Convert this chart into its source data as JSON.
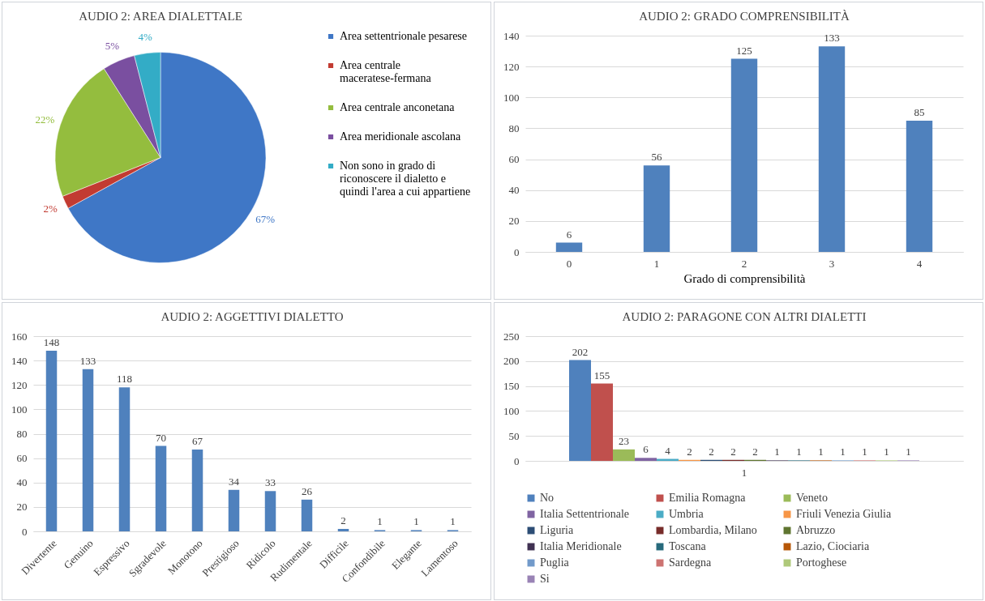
{
  "chart_data": [
    {
      "type": "pie",
      "title": "AUDIO 2: AREA DIALETTALE",
      "categories": [
        "Area settentrionale pesarese",
        "Area centrale maceratese-fermana",
        "Area centrale anconetana",
        "Area meridionale ascolana",
        "Non sono in grado di riconoscere il dialetto e quindi l'area a cui appartiene"
      ],
      "values": [
        67,
        2,
        22,
        5,
        4
      ],
      "colors": [
        "#3f77c6",
        "#c23b32",
        "#94bd3e",
        "#7a4fa0",
        "#33acc6"
      ],
      "value_labels": [
        "67%",
        "2%",
        "22%",
        "5%",
        "4%"
      ],
      "legend": "right"
    },
    {
      "type": "bar",
      "title": "AUDIO 2: GRADO COMPRENSIBILITÀ",
      "xlabel": "Grado di comprensibilità",
      "categories": [
        "0",
        "1",
        "2",
        "3",
        "4"
      ],
      "values": [
        6,
        56,
        125,
        133,
        85
      ],
      "color": "#4f81bd",
      "ylim": [
        0,
        140
      ],
      "yticks": [
        0,
        20,
        40,
        60,
        80,
        100,
        120,
        140
      ],
      "grid": "y",
      "data_labels": true
    },
    {
      "type": "bar",
      "title": "AUDIO 2: AGGETTIVI DIALETTO",
      "categories": [
        "Divertente",
        "Genuino",
        "Espressivo",
        "Sgradevole",
        "Monotono",
        "Prestigioso",
        "Ridicolo",
        "Rudimentale",
        "Difficile",
        "Confondibile",
        "Elegante",
        "Lamentoso"
      ],
      "values": [
        148,
        133,
        118,
        70,
        67,
        34,
        33,
        26,
        2,
        1,
        1,
        1
      ],
      "color": "#4f81bd",
      "ylim": [
        0,
        160
      ],
      "yticks": [
        0,
        20,
        40,
        60,
        80,
        100,
        120,
        140,
        160
      ],
      "grid": "y",
      "data_labels": true
    },
    {
      "type": "bar",
      "title": "AUDIO 2: PARAGONE CON ALTRI DIALETTI",
      "categories": [
        "1"
      ],
      "ylim": [
        0,
        250
      ],
      "yticks": [
        0,
        50,
        100,
        150,
        200,
        250
      ],
      "grid": "y",
      "data_labels": true,
      "legend": "bottom",
      "series": [
        {
          "name": "No",
          "color": "#4f81bd",
          "values": [
            202
          ]
        },
        {
          "name": "Emilia Romagna",
          "color": "#c0504d",
          "values": [
            155
          ]
        },
        {
          "name": "Veneto",
          "color": "#9bbb59",
          "values": [
            23
          ]
        },
        {
          "name": "Italia Settentrionale",
          "color": "#8064a2",
          "values": [
            6
          ]
        },
        {
          "name": "Umbria",
          "color": "#4bacc6",
          "values": [
            4
          ]
        },
        {
          "name": "Friuli Venezia Giulia",
          "color": "#f79646",
          "values": [
            2
          ]
        },
        {
          "name": "Liguria",
          "color": "#2c4d75",
          "values": [
            2
          ]
        },
        {
          "name": "Lombardia, Milano",
          "color": "#772c2a",
          "values": [
            2
          ]
        },
        {
          "name": "Abruzzo",
          "color": "#5f7530",
          "values": [
            2
          ]
        },
        {
          "name": "Italia Meridionale",
          "color": "#403152",
          "values": [
            1
          ]
        },
        {
          "name": "Toscana",
          "color": "#276a7c",
          "values": [
            1
          ]
        },
        {
          "name": "Lazio, Ciociaria",
          "color": "#b65708",
          "values": [
            1
          ]
        },
        {
          "name": "Puglia",
          "color": "#729aca",
          "values": [
            1
          ]
        },
        {
          "name": "Sardegna",
          "color": "#cd7371",
          "values": [
            1
          ]
        },
        {
          "name": "Portoghese",
          "color": "#afc97a",
          "values": [
            1
          ]
        },
        {
          "name": "Si",
          "color": "#9983b5",
          "values": [
            1
          ]
        }
      ]
    }
  ]
}
